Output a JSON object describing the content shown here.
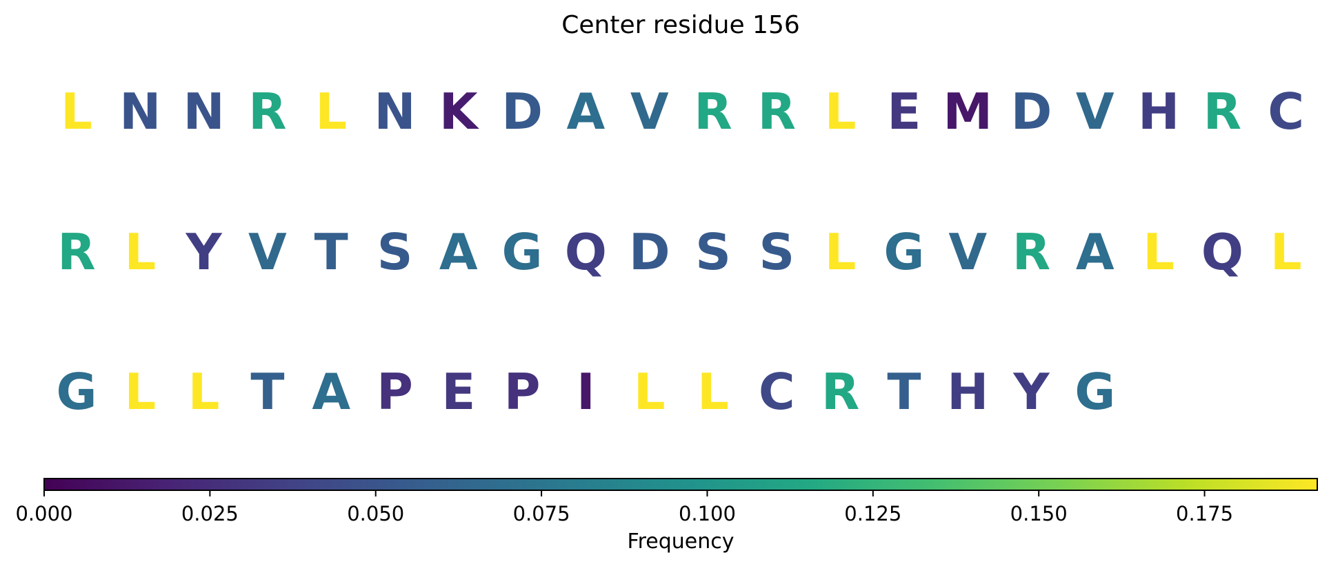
{
  "chart_data": {
    "type": "sequence-logo",
    "title": "Center residue 156",
    "rows": [
      [
        "L",
        "N",
        "N",
        "R",
        "L",
        "N",
        "K",
        "D",
        "A",
        "V",
        "R",
        "R",
        "L",
        "E",
        "M",
        "D",
        "V",
        "H",
        "R",
        "C"
      ],
      [
        "R",
        "L",
        "Y",
        "V",
        "T",
        "S",
        "A",
        "G",
        "Q",
        "D",
        "S",
        "S",
        "L",
        "G",
        "V",
        "R",
        "A",
        "L",
        "Q",
        "L"
      ],
      [
        "G",
        "L",
        "L",
        "T",
        "A",
        "P",
        "E",
        "P",
        "I",
        "L",
        "L",
        "C",
        "R",
        "T",
        "H",
        "Y",
        "G"
      ]
    ],
    "frequencies": {
      "L": 0.192,
      "R": 0.115,
      "A": 0.069,
      "G": 0.069,
      "V": 0.065,
      "T": 0.058,
      "D": 0.054,
      "S": 0.054,
      "N": 0.05,
      "C": 0.042,
      "Q": 0.035,
      "H": 0.035,
      "Y": 0.035,
      "E": 0.031,
      "P": 0.027,
      "K": 0.015,
      "M": 0.012,
      "I": 0.012
    },
    "colorbar": {
      "label": "Frequency",
      "range": [
        0,
        0.192
      ],
      "ticks": [
        0.0,
        0.025,
        0.05,
        0.075,
        0.1,
        0.125,
        0.15,
        0.175
      ],
      "tick_labels": [
        "0.000",
        "0.025",
        "0.050",
        "0.075",
        "0.100",
        "0.125",
        "0.150",
        "0.175"
      ],
      "colormap": "viridis",
      "position": "bottom"
    }
  }
}
